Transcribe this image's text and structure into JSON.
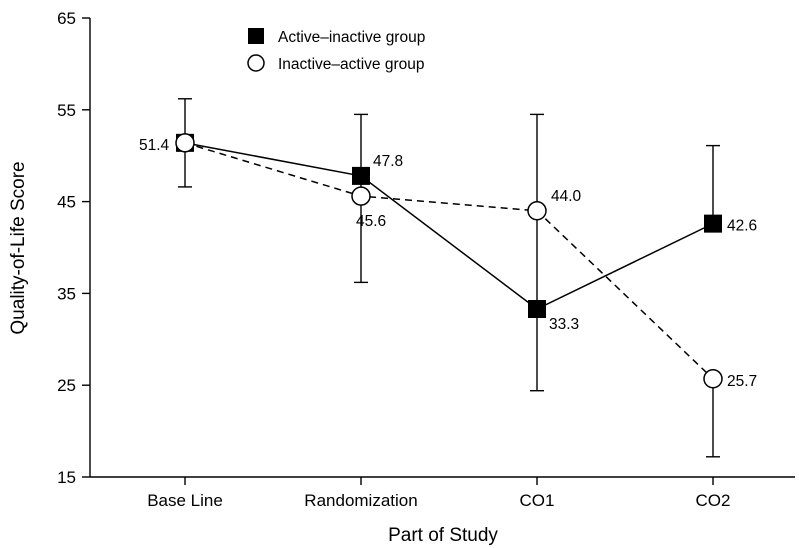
{
  "chart_data": {
    "type": "line",
    "title": "",
    "xlabel": "Part of Study",
    "ylabel": "Quality-of-Life Score",
    "categories": [
      "Base Line",
      "Randomization",
      "CO1",
      "CO2"
    ],
    "ylim": [
      15,
      65
    ],
    "yticks": [
      15,
      25,
      35,
      45,
      55,
      65
    ],
    "grid": false,
    "legend_position": "top-left",
    "series": [
      {
        "name": "Active–inactive group",
        "marker": "filled-square",
        "line_style": "solid",
        "values": [
          51.4,
          47.8,
          33.3,
          42.6
        ],
        "labels": [
          "51.4",
          "47.8",
          "33.3",
          "42.6"
        ],
        "error_bars": [
          [
            46.6,
            56.2
          ],
          [
            null,
            null
          ],
          [
            24.4,
            54.5
          ],
          [
            null,
            51.1
          ]
        ]
      },
      {
        "name": "Inactive–active group",
        "marker": "open-circle",
        "line_style": "dashed",
        "values": [
          51.4,
          45.6,
          44.0,
          25.7
        ],
        "labels": [
          "",
          "45.6",
          "44.0",
          "25.7"
        ],
        "error_bars": [
          [
            null,
            null
          ],
          [
            36.2,
            54.5
          ],
          [
            null,
            null
          ],
          [
            17.2,
            null
          ]
        ]
      }
    ]
  }
}
